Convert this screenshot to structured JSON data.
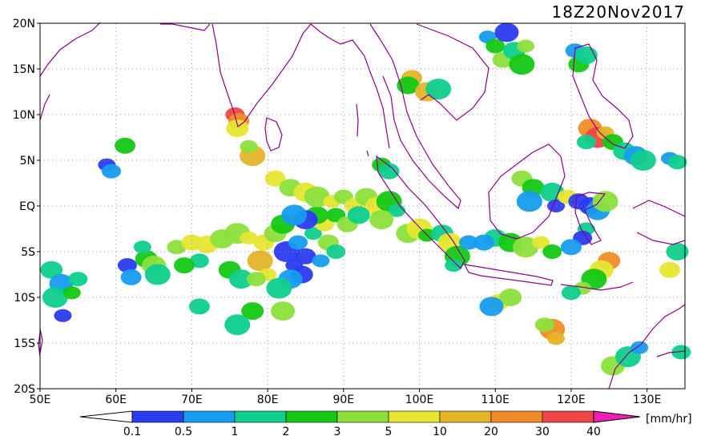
{
  "title": "18Z20Nov2017",
  "units": "[mm/hr]",
  "lat_labels": [
    "20N",
    "15N",
    "10N",
    "5N",
    "EQ",
    "5S",
    "10S",
    "15S",
    "20S"
  ],
  "lat_values": [
    20,
    15,
    10,
    5,
    0,
    -5,
    -10,
    -15,
    -20
  ],
  "lon_labels": [
    "50E",
    "60E",
    "70E",
    "80E",
    "90E",
    "100E",
    "110E",
    "120E",
    "130E"
  ],
  "lon_values": [
    50,
    60,
    70,
    80,
    90,
    100,
    110,
    120,
    130
  ],
  "lon_range": [
    50,
    135
  ],
  "lat_range": [
    -20,
    20
  ],
  "legend": {
    "thresholds": [
      "0.1",
      "0.5",
      "1",
      "2",
      "3",
      "5",
      "10",
      "20",
      "30",
      "40"
    ],
    "colors": [
      "#2a3cf0",
      "#169cf0",
      "#0fcf8c",
      "#14c814",
      "#8ce03c",
      "#e6e632",
      "#e6b428",
      "#f08c28",
      "#f04646",
      "#f01eb4"
    ]
  },
  "colors": {
    "coastline": "#8c008c",
    "grid": "#9a9a9a"
  },
  "rain_cells": [
    {
      "lon": 58.8,
      "lat": 4.5,
      "level": 0
    },
    {
      "lon": 59.4,
      "lat": 3.8,
      "level": 1
    },
    {
      "lon": 61.2,
      "lat": 6.6,
      "level": 3
    },
    {
      "lon": 51.5,
      "lat": -7.0,
      "level": 2
    },
    {
      "lon": 52.8,
      "lat": -8.5,
      "level": 1
    },
    {
      "lon": 52.0,
      "lat": -10.0,
      "level": 2
    },
    {
      "lon": 54.2,
      "lat": -9.5,
      "level": 3
    },
    {
      "lon": 61.5,
      "lat": -6.5,
      "level": 0
    },
    {
      "lon": 62.0,
      "lat": -7.8,
      "level": 1
    },
    {
      "lon": 64.0,
      "lat": -5.8,
      "level": 3
    },
    {
      "lon": 65.0,
      "lat": -6.5,
      "level": 4
    },
    {
      "lon": 65.5,
      "lat": -7.5,
      "level": 2
    },
    {
      "lon": 63.5,
      "lat": -4.5,
      "level": 2
    },
    {
      "lon": 68.0,
      "lat": -4.5,
      "level": 4
    },
    {
      "lon": 70.0,
      "lat": -4.0,
      "level": 5
    },
    {
      "lon": 72.0,
      "lat": -4.2,
      "level": 5
    },
    {
      "lon": 74.0,
      "lat": -3.6,
      "level": 4
    },
    {
      "lon": 76.0,
      "lat": -3.0,
      "level": 4
    },
    {
      "lon": 77.5,
      "lat": -3.5,
      "level": 5
    },
    {
      "lon": 71.0,
      "lat": -6.0,
      "level": 2
    },
    {
      "lon": 69.0,
      "lat": -6.5,
      "level": 3
    },
    {
      "lon": 75.0,
      "lat": -7.0,
      "level": 3
    },
    {
      "lon": 76.5,
      "lat": -8.0,
      "level": 2
    },
    {
      "lon": 79.0,
      "lat": -6.0,
      "level": 6
    },
    {
      "lon": 80.0,
      "lat": -7.5,
      "level": 5
    },
    {
      "lon": 78.5,
      "lat": -8.0,
      "level": 4
    },
    {
      "lon": 79.5,
      "lat": -4.0,
      "level": 5
    },
    {
      "lon": 81.0,
      "lat": -3.0,
      "level": 4
    },
    {
      "lon": 82.0,
      "lat": -2.0,
      "level": 3
    },
    {
      "lon": 82.5,
      "lat": -5.0,
      "level": 0
    },
    {
      "lon": 83.5,
      "lat": -6.5,
      "level": 0
    },
    {
      "lon": 84.0,
      "lat": -4.0,
      "level": 1
    },
    {
      "lon": 85.0,
      "lat": -5.5,
      "level": 0
    },
    {
      "lon": 84.5,
      "lat": -7.5,
      "level": 0
    },
    {
      "lon": 83.0,
      "lat": -8.0,
      "level": 1
    },
    {
      "lon": 81.5,
      "lat": -9.0,
      "level": 2
    },
    {
      "lon": 86.0,
      "lat": -3.0,
      "level": 2
    },
    {
      "lon": 87.5,
      "lat": -2.0,
      "level": 5
    },
    {
      "lon": 88.0,
      "lat": -4.0,
      "level": 4
    },
    {
      "lon": 86.5,
      "lat": -1.0,
      "level": 3
    },
    {
      "lon": 85.0,
      "lat": -1.5,
      "level": 0
    },
    {
      "lon": 83.5,
      "lat": -1.0,
      "level": 1
    },
    {
      "lon": 87.0,
      "lat": -6.0,
      "level": 1
    },
    {
      "lon": 89.0,
      "lat": -5.0,
      "level": 2
    },
    {
      "lon": 81.0,
      "lat": 3.0,
      "level": 5
    },
    {
      "lon": 83.0,
      "lat": 2.0,
      "level": 4
    },
    {
      "lon": 85.0,
      "lat": 1.5,
      "level": 5
    },
    {
      "lon": 86.5,
      "lat": 1.0,
      "level": 4
    },
    {
      "lon": 88.5,
      "lat": 0.5,
      "level": 5
    },
    {
      "lon": 90.0,
      "lat": 1.0,
      "level": 4
    },
    {
      "lon": 91.5,
      "lat": 0.0,
      "level": 5
    },
    {
      "lon": 93.0,
      "lat": 1.0,
      "level": 4
    },
    {
      "lon": 94.5,
      "lat": 0.0,
      "level": 5
    },
    {
      "lon": 96.0,
      "lat": 0.5,
      "level": 3
    },
    {
      "lon": 97.0,
      "lat": -0.5,
      "level": 2
    },
    {
      "lon": 89.0,
      "lat": -1.0,
      "level": 3
    },
    {
      "lon": 90.5,
      "lat": -2.0,
      "level": 4
    },
    {
      "lon": 92.0,
      "lat": -1.0,
      "level": 2
    },
    {
      "lon": 95.0,
      "lat": -1.5,
      "level": 4
    },
    {
      "lon": 78.0,
      "lat": 5.5,
      "level": 6
    },
    {
      "lon": 77.5,
      "lat": 6.5,
      "level": 4
    },
    {
      "lon": 75.7,
      "lat": 10.0,
      "level": 8
    },
    {
      "lon": 76.2,
      "lat": 9.3,
      "level": 7
    },
    {
      "lon": 76.0,
      "lat": 8.5,
      "level": 5
    },
    {
      "lon": 98.5,
      "lat": -3.0,
      "level": 4
    },
    {
      "lon": 100.0,
      "lat": -2.5,
      "level": 5
    },
    {
      "lon": 101.0,
      "lat": -3.2,
      "level": 3
    },
    {
      "lon": 95.0,
      "lat": 4.5,
      "level": 3
    },
    {
      "lon": 96.0,
      "lat": 3.8,
      "level": 2
    },
    {
      "lon": 103.0,
      "lat": -3.0,
      "level": 2
    },
    {
      "lon": 104.0,
      "lat": -4.0,
      "level": 5
    },
    {
      "lon": 105.0,
      "lat": -5.5,
      "level": 3
    },
    {
      "lon": 104.5,
      "lat": -6.5,
      "level": 2
    },
    {
      "lon": 106.5,
      "lat": -4.0,
      "level": 1
    },
    {
      "lon": 99.0,
      "lat": 14.0,
      "level": 6
    },
    {
      "lon": 98.5,
      "lat": 13.2,
      "level": 3
    },
    {
      "lon": 101.0,
      "lat": 12.5,
      "level": 6
    },
    {
      "lon": 102.5,
      "lat": 12.8,
      "level": 2
    },
    {
      "lon": 109.0,
      "lat": 18.5,
      "level": 1
    },
    {
      "lon": 110.0,
      "lat": 17.5,
      "level": 3
    },
    {
      "lon": 111.0,
      "lat": 16.0,
      "level": 4
    },
    {
      "lon": 112.5,
      "lat": 17.0,
      "level": 2
    },
    {
      "lon": 111.5,
      "lat": 19.0,
      "level": 0
    },
    {
      "lon": 113.5,
      "lat": 15.5,
      "level": 3
    },
    {
      "lon": 114.0,
      "lat": 17.5,
      "level": 4
    },
    {
      "lon": 120.5,
      "lat": 17.0,
      "level": 1
    },
    {
      "lon": 121.0,
      "lat": 15.5,
      "level": 3
    },
    {
      "lon": 122.0,
      "lat": 16.5,
      "level": 2
    },
    {
      "lon": 122.5,
      "lat": 8.5,
      "level": 7
    },
    {
      "lon": 123.5,
      "lat": 7.5,
      "level": 8
    },
    {
      "lon": 124.5,
      "lat": 8.0,
      "level": 6
    },
    {
      "lon": 122.0,
      "lat": 7.0,
      "level": 2
    },
    {
      "lon": 125.5,
      "lat": 7.0,
      "level": 3
    },
    {
      "lon": 127.0,
      "lat": 6.0,
      "level": 2
    },
    {
      "lon": 128.5,
      "lat": 5.5,
      "level": 1
    },
    {
      "lon": 129.5,
      "lat": 5.0,
      "level": 2
    },
    {
      "lon": 133.0,
      "lat": 5.2,
      "level": 1
    },
    {
      "lon": 134.0,
      "lat": 4.8,
      "level": 2
    },
    {
      "lon": 113.5,
      "lat": 3.0,
      "level": 4
    },
    {
      "lon": 115.0,
      "lat": 2.0,
      "level": 3
    },
    {
      "lon": 117.5,
      "lat": 1.5,
      "level": 2
    },
    {
      "lon": 114.5,
      "lat": 0.5,
      "level": 1
    },
    {
      "lon": 118.0,
      "lat": 0.0,
      "level": 0
    },
    {
      "lon": 119.5,
      "lat": 1.0,
      "level": 5
    },
    {
      "lon": 121.0,
      "lat": 0.5,
      "level": 0
    },
    {
      "lon": 122.5,
      "lat": 0.0,
      "level": 0
    },
    {
      "lon": 123.5,
      "lat": -0.5,
      "level": 1
    },
    {
      "lon": 124.5,
      "lat": 0.5,
      "level": 4
    },
    {
      "lon": 122.0,
      "lat": -2.5,
      "level": 2
    },
    {
      "lon": 121.5,
      "lat": -3.5,
      "level": 0
    },
    {
      "lon": 120.0,
      "lat": -4.5,
      "level": 1
    },
    {
      "lon": 110.0,
      "lat": -3.5,
      "level": 2
    },
    {
      "lon": 112.0,
      "lat": -4.0,
      "level": 3
    },
    {
      "lon": 114.0,
      "lat": -4.5,
      "level": 4
    },
    {
      "lon": 116.0,
      "lat": -4.0,
      "level": 5
    },
    {
      "lon": 117.5,
      "lat": -5.0,
      "level": 3
    },
    {
      "lon": 108.5,
      "lat": -4.0,
      "level": 1
    },
    {
      "lon": 125.0,
      "lat": -6.0,
      "level": 7
    },
    {
      "lon": 124.0,
      "lat": -7.0,
      "level": 5
    },
    {
      "lon": 123.0,
      "lat": -8.0,
      "level": 3
    },
    {
      "lon": 121.5,
      "lat": -9.0,
      "level": 4
    },
    {
      "lon": 120.0,
      "lat": -9.5,
      "level": 2
    },
    {
      "lon": 110.5,
      "lat": -10.5,
      "level": 5
    },
    {
      "lon": 112.0,
      "lat": -10.0,
      "level": 4
    },
    {
      "lon": 109.5,
      "lat": -11.0,
      "level": 1
    },
    {
      "lon": 117.5,
      "lat": -13.5,
      "level": 7
    },
    {
      "lon": 118.0,
      "lat": -14.5,
      "level": 6
    },
    {
      "lon": 116.5,
      "lat": -13.0,
      "level": 4
    },
    {
      "lon": 133.0,
      "lat": -7.0,
      "level": 5
    },
    {
      "lon": 134.0,
      "lat": -5.0,
      "level": 2
    },
    {
      "lon": 125.5,
      "lat": -17.5,
      "level": 4
    },
    {
      "lon": 127.5,
      "lat": -16.5,
      "level": 2
    },
    {
      "lon": 129.0,
      "lat": -15.5,
      "level": 1
    },
    {
      "lon": 134.5,
      "lat": -16.0,
      "level": 2
    },
    {
      "lon": 71.0,
      "lat": -11.0,
      "level": 2
    },
    {
      "lon": 78.0,
      "lat": -11.5,
      "level": 3
    },
    {
      "lon": 82.0,
      "lat": -11.5,
      "level": 4
    },
    {
      "lon": 76.0,
      "lat": -13.0,
      "level": 2
    },
    {
      "lon": 53.0,
      "lat": -12.0,
      "level": 0
    },
    {
      "lon": 55.0,
      "lat": -8.0,
      "level": 2
    }
  ]
}
